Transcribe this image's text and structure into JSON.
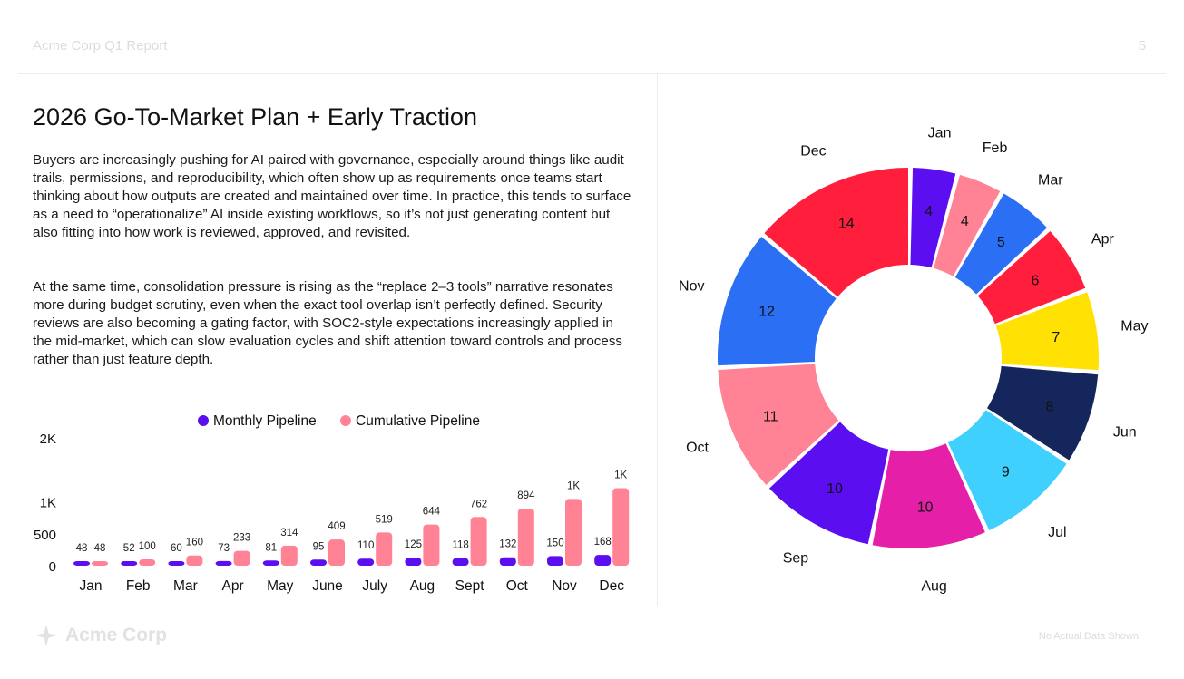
{
  "header": {
    "report_title": "Acme Corp Q1 Report",
    "page_number": "5"
  },
  "title": "2026 Go-To-Market Plan + Early Traction",
  "paragraphs": [
    "Buyers are increasingly pushing for AI paired with governance, especially around things like audit trails, permissions, and reproducibility, which often show up as requirements once teams start thinking about how outputs are created and maintained over time. In practice, this tends to surface as a need to “operationalize” AI inside existing workflows, so it’s not just generating content but also fitting into how work is reviewed, approved, and revisited.",
    "At the same time, consolidation pressure is rising as the “replace 2–3 tools” narrative resonates more during budget scrutiny, even when the exact tool overlap isn’t perfectly defined. Security reviews are also becoming a gating factor, with SOC2-style expectations increasingly applied in the mid-market, which can slow evaluation cycles and shift attention toward controls and process rather than just feature depth."
  ],
  "footer": {
    "brand": "Acme Corp",
    "note": "No Actual Data Shown"
  },
  "colors": {
    "monthly": "#5b0ef0",
    "cumulative": "#ff8394"
  },
  "chart_data": [
    {
      "type": "bar",
      "categories": [
        "Jan",
        "Feb",
        "Mar",
        "Apr",
        "May",
        "June",
        "July",
        "Aug",
        "Sept",
        "Oct",
        "Nov",
        "Dec"
      ],
      "series": [
        {
          "name": "Monthly Pipeline",
          "values": [
            48,
            52,
            60,
            73,
            81,
            95,
            110,
            125,
            118,
            132,
            150,
            168
          ],
          "labels": [
            "48",
            "52",
            "60",
            "73",
            "81",
            "95",
            "110",
            "125",
            "118",
            "132",
            "150",
            "168"
          ],
          "color": "#5b0ef0"
        },
        {
          "name": "Cumulative Pipeline",
          "values": [
            48,
            100,
            160,
            233,
            314,
            409,
            519,
            644,
            762,
            894,
            1044,
            1212
          ],
          "labels": [
            "48",
            "100",
            "160",
            "233",
            "314",
            "409",
            "519",
            "644",
            "762",
            "894",
            "1K",
            "1K"
          ],
          "color": "#ff8394"
        }
      ],
      "ylim": [
        0,
        2000
      ],
      "yticks": [
        0,
        500,
        1000,
        2000
      ],
      "ytick_labels": [
        "0",
        "500",
        "1K",
        "2K"
      ],
      "legend": "top",
      "grid": false
    },
    {
      "type": "pie",
      "variant": "donut",
      "labels": [
        "Jan",
        "Feb",
        "Mar",
        "Apr",
        "May",
        "Jun",
        "Jul",
        "Aug",
        "Sep",
        "Oct",
        "Nov",
        "Dec"
      ],
      "values": [
        4,
        4,
        5,
        6,
        7,
        8,
        9,
        10,
        10,
        11,
        12,
        14
      ],
      "colors": [
        "#5b0ef0",
        "#ff8394",
        "#2b6ff5",
        "#ff1e3c",
        "#ffe104",
        "#14265c",
        "#40d0fd",
        "#e61fa8",
        "#5b0ef0",
        "#ff8394",
        "#2b6ff5",
        "#ff1e3c"
      ]
    }
  ]
}
